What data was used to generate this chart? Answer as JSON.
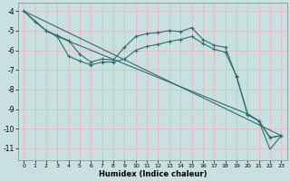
{
  "xlabel": "Humidex (Indice chaleur)",
  "xlim": [
    -0.5,
    23.5
  ],
  "ylim": [
    -11.6,
    -3.6
  ],
  "yticks": [
    -4,
    -5,
    -6,
    -7,
    -8,
    -9,
    -10,
    -11
  ],
  "xticks": [
    0,
    1,
    2,
    3,
    4,
    5,
    6,
    7,
    8,
    9,
    10,
    11,
    12,
    13,
    14,
    15,
    16,
    17,
    18,
    19,
    20,
    21,
    22,
    23
  ],
  "bg_color": "#c8e0e0",
  "grid_color": "#e8b8b8",
  "line_color": "#2d6e6e",
  "line1_x": [
    0,
    1,
    2,
    3,
    4,
    5,
    6,
    7,
    8,
    9,
    10,
    11,
    12,
    13,
    14,
    15,
    16,
    17,
    18,
    19,
    20,
    21,
    22,
    23
  ],
  "line1_y": [
    -4.0,
    -4.55,
    -5.0,
    -5.25,
    -5.5,
    -6.2,
    -6.6,
    -6.45,
    -6.5,
    -5.85,
    -5.3,
    -5.15,
    -5.1,
    -5.0,
    -5.05,
    -4.85,
    -5.45,
    -5.75,
    -5.85,
    -7.35,
    -9.3,
    -9.6,
    -10.45,
    -10.35
  ],
  "line2_x": [
    2,
    3,
    4,
    5,
    6,
    7,
    8,
    9,
    10,
    11,
    12,
    13,
    14,
    15,
    16,
    17,
    18,
    19,
    20,
    21,
    22,
    23
  ],
  "line2_y": [
    -5.0,
    -5.3,
    -6.3,
    -6.55,
    -6.75,
    -6.6,
    -6.6,
    -6.45,
    -6.0,
    -5.8,
    -5.7,
    -5.55,
    -5.45,
    -5.3,
    -5.65,
    -5.95,
    -6.1,
    -7.3,
    -9.25,
    -9.6,
    -10.45,
    -10.35
  ],
  "line3_x": [
    0,
    2,
    3,
    20,
    21,
    22,
    23
  ],
  "line3_y": [
    -4.0,
    -5.0,
    -5.3,
    -9.25,
    -9.6,
    -11.05,
    -10.35
  ],
  "line4_x": [
    0,
    23
  ],
  "line4_y": [
    -4.0,
    -10.35
  ]
}
